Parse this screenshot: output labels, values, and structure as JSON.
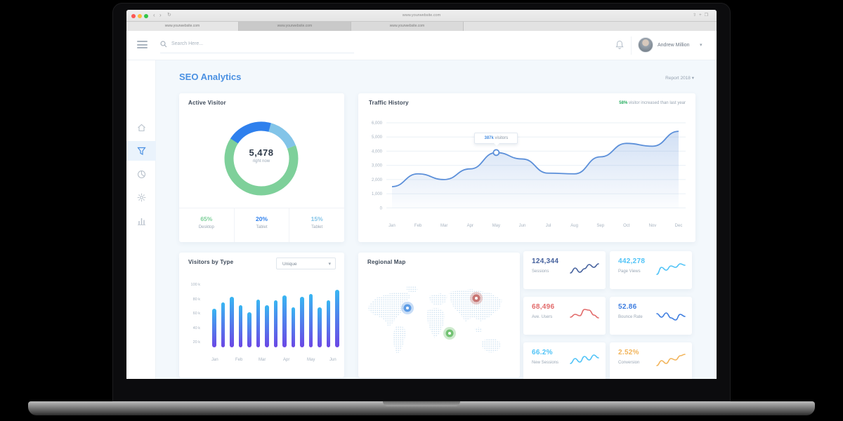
{
  "browser": {
    "url": "www.yourwebsite.com",
    "tabs": [
      {
        "label": "www.yourwebsite.com"
      },
      {
        "label": "www.yourwebsite.com"
      },
      {
        "label": "www.yourwebsite.com"
      }
    ]
  },
  "header": {
    "search_placeholder": "Search Here...",
    "user_name": "Andrew Million"
  },
  "sidebar": {
    "items": [
      {
        "name": "home"
      },
      {
        "name": "analytics"
      },
      {
        "name": "reports"
      },
      {
        "name": "settings"
      },
      {
        "name": "stats"
      }
    ]
  },
  "page": {
    "title": "SEO Analytics",
    "report_label": "Report 2018"
  },
  "regional_map": {
    "title": "Regional Map",
    "markers": [
      {
        "region": "north-america",
        "color": "#4a90e2"
      },
      {
        "region": "russia",
        "color": "#c0605e"
      },
      {
        "region": "africa",
        "color": "#5cb85c"
      }
    ]
  },
  "chart_data": [
    {
      "type": "pie",
      "title": "Active Visitor",
      "center_value": "5,478",
      "center_label": "right now",
      "slices": [
        {
          "label": "Desktop",
          "value": 65,
          "pct_label": "65%",
          "color": "#7ed09a"
        },
        {
          "label": "Tablet",
          "value": 20,
          "pct_label": "20%",
          "color": "#2f80ed"
        },
        {
          "label": "Tablet",
          "value": 15,
          "pct_label": "15%",
          "color": "#82c4e8"
        }
      ]
    },
    {
      "type": "line",
      "title": "Traffic History",
      "note_highlight": "58%",
      "note_text": "visitor increased than last year",
      "x": [
        "Jan",
        "Feb",
        "Mar",
        "Apr",
        "May",
        "Jun",
        "Jul",
        "Aug",
        "Sep",
        "Oct",
        "Nov",
        "Dec"
      ],
      "values": [
        1500,
        2400,
        2000,
        2750,
        3900,
        3450,
        2450,
        2400,
        3600,
        4550,
        4350,
        5400
      ],
      "ylim": [
        0,
        6000
      ],
      "yticks": [
        "6,000",
        "5,000",
        "4,000",
        "3,000",
        "2,000",
        "1,000",
        "0"
      ],
      "grid": true,
      "legend": "none",
      "line_color": "#5b8fd9",
      "annotation": {
        "value": "387k",
        "suffix": "visitors",
        "month_index": 4
      }
    },
    {
      "type": "bar",
      "title": "Visitors by Type",
      "filter_selected": "Unique",
      "categories": [
        "Jan",
        "Feb",
        "Mar",
        "Apr",
        "May",
        "Jun"
      ],
      "yticks": [
        "100 k",
        "80 k",
        "60 k",
        "40 k",
        "20 k"
      ],
      "ylim_k": [
        0,
        110
      ],
      "values_k": [
        67,
        76,
        83,
        72,
        62,
        80,
        72,
        79,
        85,
        69,
        83,
        87,
        69,
        79,
        93
      ],
      "bar_gradient": [
        "#38b6f2",
        "#6b46e5"
      ]
    },
    {
      "type": "sparkline-stats",
      "cards": [
        {
          "value": "124,344",
          "label": "Sessions",
          "color": "#44609d"
        },
        {
          "value": "442,278",
          "label": "Page Views",
          "color": "#4fc3f7"
        },
        {
          "value": "68,496",
          "label": "Ave. Users",
          "color": "#e26a6a"
        },
        {
          "value": "52.86",
          "label": "Bounce Rate",
          "color": "#3d7de0"
        },
        {
          "value": "66.2%",
          "label": "New Sessions",
          "color": "#4fc3f7"
        },
        {
          "value": "2.52%",
          "label": "Conversion",
          "color": "#f2b45a"
        }
      ]
    }
  ]
}
